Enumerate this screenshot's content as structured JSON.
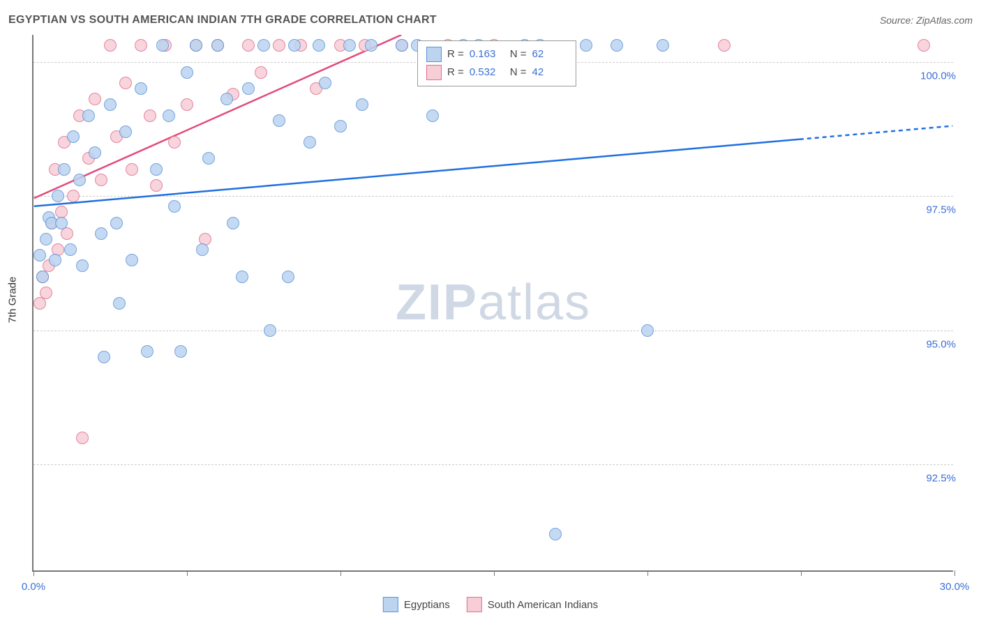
{
  "title": "EGYPTIAN VS SOUTH AMERICAN INDIAN 7TH GRADE CORRELATION CHART",
  "source": "Source: ZipAtlas.com",
  "watermark_zip": "ZIP",
  "watermark_atlas": "atlas",
  "y_axis_label": "7th Grade",
  "chart": {
    "type": "scatter",
    "background_color": "#ffffff",
    "grid_color": "#cccccc",
    "axis_color": "#777777",
    "tick_label_color": "#3b6fd6",
    "tick_fontsize": 15,
    "xlim": [
      0,
      30
    ],
    "ylim": [
      90.5,
      100.5
    ],
    "x_ticks": [
      0,
      5,
      10,
      15,
      20,
      25,
      30
    ],
    "x_tick_labels": [
      "0.0%",
      "",
      "",
      "",
      "",
      "",
      "30.0%"
    ],
    "y_ticks": [
      92.5,
      95.0,
      97.5,
      100.0
    ],
    "y_tick_labels": [
      "92.5%",
      "95.0%",
      "97.5%",
      "100.0%"
    ],
    "marker_radius": 9,
    "marker_stroke_width": 1.5,
    "trend_line_width": 2.5
  },
  "series": {
    "egyptians": {
      "label": "Egyptians",
      "fill": "#bcd4f0",
      "stroke": "#5a94d8",
      "r_value": "0.163",
      "n_value": "62",
      "trend": {
        "x1": 0,
        "y1": 97.3,
        "x2": 30,
        "y2": 98.8,
        "color": "#1e6fe0",
        "dash_from_x": 25
      },
      "points": [
        [
          0.2,
          96.4
        ],
        [
          0.3,
          96.0
        ],
        [
          0.4,
          96.7
        ],
        [
          0.5,
          97.1
        ],
        [
          0.6,
          97.0
        ],
        [
          0.7,
          96.3
        ],
        [
          0.8,
          97.5
        ],
        [
          0.9,
          97.0
        ],
        [
          1.0,
          98.0
        ],
        [
          1.2,
          96.5
        ],
        [
          1.3,
          98.6
        ],
        [
          1.5,
          97.8
        ],
        [
          1.6,
          96.2
        ],
        [
          1.8,
          99.0
        ],
        [
          2.0,
          98.3
        ],
        [
          2.2,
          96.8
        ],
        [
          2.3,
          94.5
        ],
        [
          2.5,
          99.2
        ],
        [
          2.7,
          97.0
        ],
        [
          2.8,
          95.5
        ],
        [
          3.0,
          98.7
        ],
        [
          3.2,
          96.3
        ],
        [
          3.5,
          99.5
        ],
        [
          3.7,
          94.6
        ],
        [
          4.0,
          98.0
        ],
        [
          4.2,
          100.3
        ],
        [
          4.4,
          99.0
        ],
        [
          4.6,
          97.3
        ],
        [
          4.8,
          94.6
        ],
        [
          5.0,
          99.8
        ],
        [
          5.3,
          100.3
        ],
        [
          5.5,
          96.5
        ],
        [
          5.7,
          98.2
        ],
        [
          6.0,
          100.3
        ],
        [
          6.3,
          99.3
        ],
        [
          6.5,
          97.0
        ],
        [
          6.8,
          96.0
        ],
        [
          7.0,
          99.5
        ],
        [
          7.5,
          100.3
        ],
        [
          7.7,
          95.0
        ],
        [
          8.0,
          98.9
        ],
        [
          8.3,
          96.0
        ],
        [
          8.5,
          100.3
        ],
        [
          9.0,
          98.5
        ],
        [
          9.3,
          100.3
        ],
        [
          9.5,
          99.6
        ],
        [
          10.0,
          98.8
        ],
        [
          10.3,
          100.3
        ],
        [
          10.7,
          99.2
        ],
        [
          11.0,
          100.3
        ],
        [
          12.0,
          100.3
        ],
        [
          12.5,
          100.3
        ],
        [
          13.0,
          99.0
        ],
        [
          14.0,
          100.3
        ],
        [
          14.5,
          100.3
        ],
        [
          16.0,
          100.3
        ],
        [
          16.5,
          100.3
        ],
        [
          17.0,
          91.2
        ],
        [
          18.0,
          100.3
        ],
        [
          19.0,
          100.3
        ],
        [
          20.0,
          95.0
        ],
        [
          20.5,
          100.3
        ]
      ]
    },
    "south_american": {
      "label": "South American Indians",
      "fill": "#f7cdd6",
      "stroke": "#e06f8f",
      "r_value": "0.532",
      "n_value": "42",
      "trend": {
        "x1": 0,
        "y1": 97.45,
        "x2": 12,
        "y2": 100.5,
        "color": "#e24a7a"
      },
      "points": [
        [
          0.2,
          95.5
        ],
        [
          0.3,
          96.0
        ],
        [
          0.4,
          95.7
        ],
        [
          0.5,
          96.2
        ],
        [
          0.6,
          97.0
        ],
        [
          0.7,
          98.0
        ],
        [
          0.8,
          96.5
        ],
        [
          0.9,
          97.2
        ],
        [
          1.0,
          98.5
        ],
        [
          1.1,
          96.8
        ],
        [
          1.3,
          97.5
        ],
        [
          1.5,
          99.0
        ],
        [
          1.6,
          93.0
        ],
        [
          1.8,
          98.2
        ],
        [
          2.0,
          99.3
        ],
        [
          2.2,
          97.8
        ],
        [
          2.5,
          100.3
        ],
        [
          2.7,
          98.6
        ],
        [
          3.0,
          99.6
        ],
        [
          3.2,
          98.0
        ],
        [
          3.5,
          100.3
        ],
        [
          3.8,
          99.0
        ],
        [
          4.0,
          97.7
        ],
        [
          4.3,
          100.3
        ],
        [
          4.6,
          98.5
        ],
        [
          5.0,
          99.2
        ],
        [
          5.3,
          100.3
        ],
        [
          5.6,
          96.7
        ],
        [
          6.0,
          100.3
        ],
        [
          6.5,
          99.4
        ],
        [
          7.0,
          100.3
        ],
        [
          7.4,
          99.8
        ],
        [
          8.0,
          100.3
        ],
        [
          8.7,
          100.3
        ],
        [
          9.2,
          99.5
        ],
        [
          10.0,
          100.3
        ],
        [
          10.8,
          100.3
        ],
        [
          12.0,
          100.3
        ],
        [
          13.5,
          100.3
        ],
        [
          15.0,
          100.3
        ],
        [
          22.5,
          100.3
        ],
        [
          29.0,
          100.3
        ]
      ]
    }
  },
  "stats_box": {
    "rows": [
      {
        "swatch_fill": "#bcd4f0",
        "swatch_stroke": "#5a94d8",
        "r_label": "R =",
        "r": "0.163",
        "n_label": "N =",
        "n": "62"
      },
      {
        "swatch_fill": "#f7cdd6",
        "swatch_stroke": "#e06f8f",
        "r_label": "R =",
        "r": "0.532",
        "n_label": "N =",
        "n": "42"
      }
    ]
  }
}
